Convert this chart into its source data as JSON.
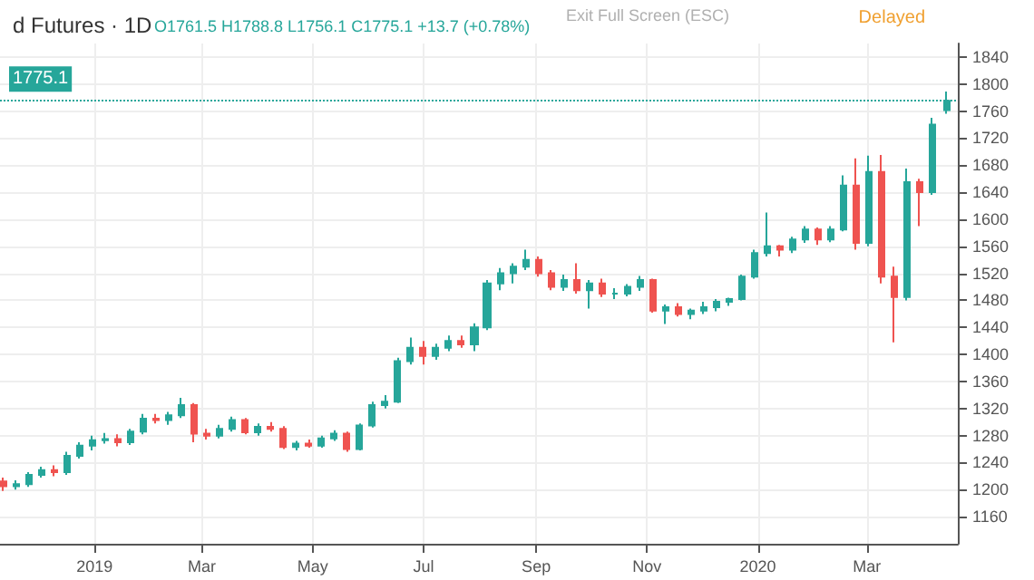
{
  "chart_data": {
    "type": "candlestick",
    "title": "d Futures · 1D",
    "subtitle": "O1761.5 H1788.8 L1756.1 C1775.1 +13.7 (+0.78%)",
    "annotations": [
      "Exit Full Screen (ESC)",
      "Delayed"
    ],
    "x": [
      "2018-11-12",
      "2018-11-19",
      "2018-11-26",
      "2018-12-03",
      "2018-12-10",
      "2018-12-17",
      "2018-12-24",
      "2018-12-31",
      "2019-01-07",
      "2019-01-14",
      "2019-01-21",
      "2019-01-28",
      "2019-02-04",
      "2019-02-11",
      "2019-02-18",
      "2019-02-25",
      "2019-03-04",
      "2019-03-11",
      "2019-03-18",
      "2019-03-25",
      "2019-04-01",
      "2019-04-08",
      "2019-04-15",
      "2019-04-22",
      "2019-04-29",
      "2019-05-06",
      "2019-05-13",
      "2019-05-20",
      "2019-05-27",
      "2019-06-03",
      "2019-06-10",
      "2019-06-17",
      "2019-06-24",
      "2019-07-01",
      "2019-07-08",
      "2019-07-15",
      "2019-07-22",
      "2019-07-29",
      "2019-08-05",
      "2019-08-12",
      "2019-08-19",
      "2019-08-26",
      "2019-09-02",
      "2019-09-09",
      "2019-09-16",
      "2019-09-23",
      "2019-09-30",
      "2019-10-07",
      "2019-10-14",
      "2019-10-21",
      "2019-10-28",
      "2019-11-04",
      "2019-11-11",
      "2019-11-18",
      "2019-11-25",
      "2019-12-02",
      "2019-12-09",
      "2019-12-16",
      "2019-12-23",
      "2019-12-30",
      "2020-01-06",
      "2020-01-13",
      "2020-01-20",
      "2020-01-27",
      "2020-02-03",
      "2020-02-10",
      "2020-02-17",
      "2020-02-24",
      "2020-03-02",
      "2020-03-09",
      "2020-03-16",
      "2020-03-23",
      "2020-03-30",
      "2020-04-06",
      "2020-04-14"
    ],
    "ohlc": [
      [
        1212,
        1218,
        1198,
        1205
      ],
      [
        1205,
        1214,
        1200,
        1208
      ],
      [
        1208,
        1226,
        1204,
        1222
      ],
      [
        1222,
        1234,
        1218,
        1229
      ],
      [
        1229,
        1236,
        1220,
        1226
      ],
      [
        1226,
        1256,
        1222,
        1250
      ],
      [
        1250,
        1270,
        1246,
        1265
      ],
      [
        1265,
        1280,
        1258,
        1273
      ],
      [
        1273,
        1284,
        1268,
        1275
      ],
      [
        1275,
        1282,
        1264,
        1270
      ],
      [
        1270,
        1290,
        1266,
        1286
      ],
      [
        1286,
        1312,
        1282,
        1305
      ],
      [
        1305,
        1312,
        1298,
        1303
      ],
      [
        1303,
        1315,
        1296,
        1310
      ],
      [
        1310,
        1336,
        1306,
        1325
      ],
      [
        1325,
        1328,
        1270,
        1283
      ],
      [
        1283,
        1290,
        1274,
        1280
      ],
      [
        1280,
        1296,
        1276,
        1290
      ],
      [
        1290,
        1308,
        1286,
        1303
      ],
      [
        1303,
        1306,
        1282,
        1285
      ],
      [
        1285,
        1298,
        1280,
        1293
      ],
      [
        1293,
        1300,
        1286,
        1290
      ],
      [
        1290,
        1294,
        1260,
        1263
      ],
      [
        1263,
        1272,
        1258,
        1268
      ],
      [
        1268,
        1274,
        1262,
        1265
      ],
      [
        1265,
        1280,
        1262,
        1276
      ],
      [
        1276,
        1288,
        1272,
        1283
      ],
      [
        1283,
        1286,
        1256,
        1260
      ],
      [
        1260,
        1298,
        1258,
        1295
      ],
      [
        1295,
        1330,
        1292,
        1325
      ],
      [
        1325,
        1340,
        1320,
        1330
      ],
      [
        1330,
        1395,
        1328,
        1390
      ],
      [
        1390,
        1425,
        1385,
        1410
      ],
      [
        1410,
        1420,
        1385,
        1398
      ],
      [
        1398,
        1416,
        1392,
        1410
      ],
      [
        1410,
        1428,
        1405,
        1420
      ],
      [
        1420,
        1428,
        1410,
        1415
      ],
      [
        1415,
        1446,
        1405,
        1440
      ],
      [
        1440,
        1510,
        1436,
        1505
      ],
      [
        1505,
        1528,
        1495,
        1520
      ],
      [
        1520,
        1535,
        1505,
        1530
      ],
      [
        1530,
        1555,
        1525,
        1540
      ],
      [
        1540,
        1545,
        1515,
        1520
      ],
      [
        1520,
        1525,
        1495,
        1500
      ],
      [
        1500,
        1518,
        1494,
        1510
      ],
      [
        1510,
        1535,
        1490,
        1495
      ],
      [
        1495,
        1510,
        1468,
        1505
      ],
      [
        1505,
        1512,
        1485,
        1490
      ],
      [
        1490,
        1498,
        1482,
        1490
      ],
      [
        1490,
        1504,
        1486,
        1500
      ],
      [
        1500,
        1516,
        1494,
        1510
      ],
      [
        1510,
        1512,
        1462,
        1465
      ],
      [
        1465,
        1474,
        1445,
        1470
      ],
      [
        1470,
        1476,
        1456,
        1460
      ],
      [
        1460,
        1468,
        1452,
        1465
      ],
      [
        1465,
        1478,
        1460,
        1470
      ],
      [
        1470,
        1482,
        1464,
        1478
      ],
      [
        1478,
        1484,
        1472,
        1482
      ],
      [
        1482,
        1518,
        1480,
        1515
      ],
      [
        1515,
        1555,
        1512,
        1550
      ],
      [
        1550,
        1610,
        1545,
        1560
      ],
      [
        1560,
        1562,
        1545,
        1555
      ],
      [
        1555,
        1574,
        1550,
        1570
      ],
      [
        1570,
        1590,
        1565,
        1585
      ],
      [
        1585,
        1588,
        1562,
        1570
      ],
      [
        1570,
        1590,
        1566,
        1585
      ],
      [
        1585,
        1665,
        1582,
        1650
      ],
      [
        1650,
        1690,
        1555,
        1565
      ],
      [
        1565,
        1694,
        1560,
        1670
      ],
      [
        1670,
        1695,
        1505,
        1515
      ],
      [
        1515,
        1530,
        1418,
        1485
      ],
      [
        1485,
        1675,
        1480,
        1655
      ],
      [
        1655,
        1660,
        1590,
        1640
      ],
      [
        1640,
        1750,
        1636,
        1740
      ],
      [
        1761.5,
        1788.8,
        1756.1,
        1775.1
      ]
    ],
    "xlim": [
      "2018-11-10",
      "2020-04-20"
    ],
    "xticks": [
      {
        "value": "2019-01-01",
        "label": "2019"
      },
      {
        "value": "2019-03-01",
        "label": "Mar"
      },
      {
        "value": "2019-05-01",
        "label": "May"
      },
      {
        "value": "2019-07-01",
        "label": "Jul"
      },
      {
        "value": "2019-09-01",
        "label": "Sep"
      },
      {
        "value": "2019-11-01",
        "label": "Nov"
      },
      {
        "value": "2020-01-01",
        "label": "2020"
      },
      {
        "value": "2020-03-01",
        "label": "Mar"
      }
    ],
    "ylim": [
      1120,
      1860
    ],
    "yticks": [
      1160,
      1200,
      1240,
      1280,
      1320,
      1360,
      1400,
      1440,
      1480,
      1520,
      1560,
      1600,
      1640,
      1680,
      1720,
      1760,
      1800,
      1840
    ],
    "ref_lines": [
      {
        "axis": "y",
        "value": 1775.1,
        "label": "1775.1",
        "color": "#26a69a",
        "line_style": "dotted"
      }
    ],
    "grid": true
  }
}
